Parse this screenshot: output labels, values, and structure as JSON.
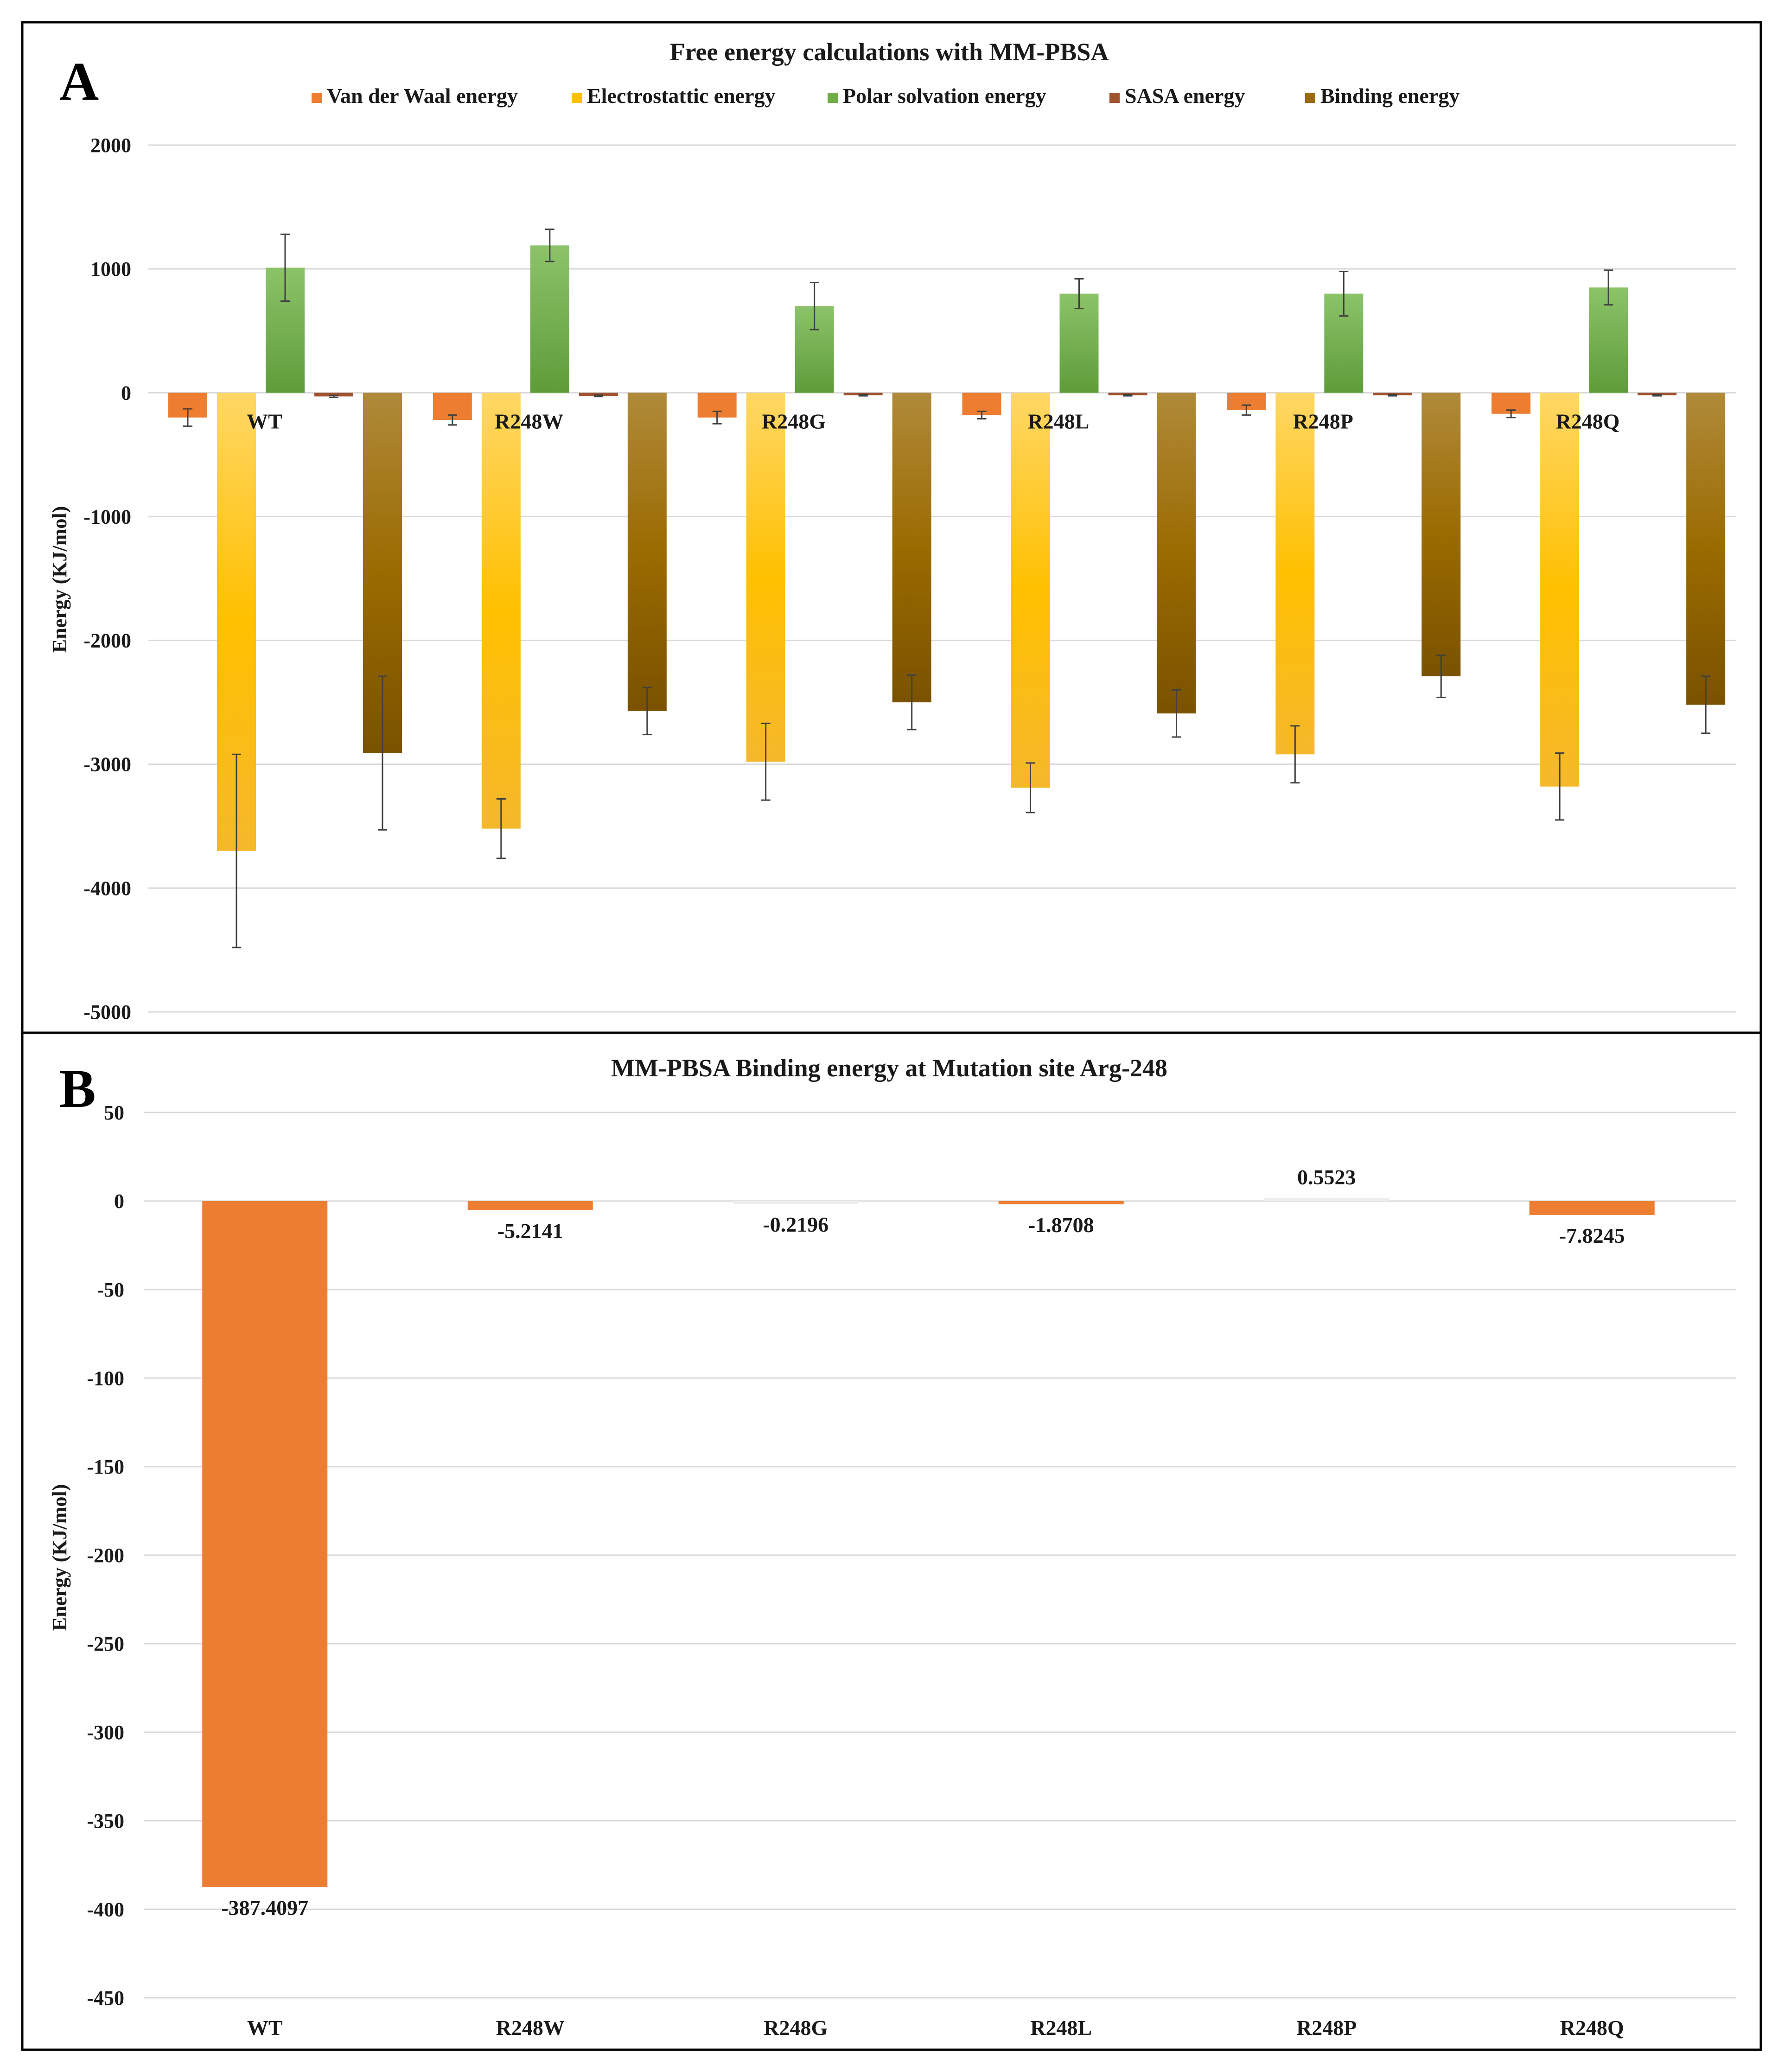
{
  "chart_data": [
    {
      "panel": "A",
      "type": "bar",
      "title": "Free energy calculations with MM-PBSA",
      "ylabel": "Energy (KJ/mol)",
      "xlabel": "",
      "ylim": [
        -5000,
        2000
      ],
      "yticks": [
        2000,
        1000,
        0,
        -1000,
        -2000,
        -3000,
        -4000,
        -5000
      ],
      "grid": true,
      "legend_position": "top",
      "categories": [
        "WT",
        "R248W",
        "R248G",
        "R248L",
        "R248P",
        "R248Q"
      ],
      "series": [
        {
          "name": "Van der Waal energy",
          "color": "#ED7D31",
          "values": [
            -200,
            -220,
            -200,
            -180,
            -140,
            -170
          ],
          "errors": [
            70,
            40,
            50,
            30,
            40,
            30
          ]
        },
        {
          "name": "Electrostattic energy",
          "color": "#FFC000",
          "values": [
            -3700,
            -3520,
            -2980,
            -3190,
            -2920,
            -3180
          ],
          "errors": [
            780,
            240,
            310,
            200,
            230,
            270
          ]
        },
        {
          "name": "Polar solvation energy",
          "color": "#70AD47",
          "values": [
            1010,
            1190,
            700,
            800,
            800,
            850
          ],
          "errors": [
            270,
            130,
            190,
            120,
            180,
            140
          ]
        },
        {
          "name": "SASA energy",
          "color": "#A0522D",
          "values": [
            -30,
            -25,
            -20,
            -20,
            -20,
            -20
          ],
          "errors": [
            8,
            6,
            5,
            5,
            5,
            5
          ]
        },
        {
          "name": "Binding energy",
          "color": "#9C6A10",
          "values": [
            -2910,
            -2570,
            -2500,
            -2590,
            -2290,
            -2520
          ],
          "errors": [
            620,
            190,
            220,
            190,
            170,
            230
          ]
        }
      ]
    },
    {
      "panel": "B",
      "type": "bar",
      "title": "MM-PBSA Binding energy at Mutation site Arg-248",
      "ylabel": "Energy (KJ/mol)",
      "xlabel": "",
      "ylim": [
        -450,
        50
      ],
      "yticks": [
        50,
        0,
        -50,
        -100,
        -150,
        -200,
        -250,
        -300,
        -350,
        -400,
        -450
      ],
      "grid": true,
      "categories": [
        "WT",
        "R248W",
        "R248G",
        "R248L",
        "R248P",
        "R248Q"
      ],
      "values": [
        -387.4097,
        -5.2141,
        -0.2196,
        -1.8708,
        0.5523,
        -7.8245
      ],
      "data_labels": [
        "-387.4097",
        "-5.2141",
        "-0.2196",
        "-1.8708",
        "0.5523",
        "-7.8245"
      ],
      "color": "#ED7D31",
      "zero_color": "#EDEDED"
    }
  ],
  "panels": {
    "a_letter": "A",
    "b_letter": "B"
  }
}
